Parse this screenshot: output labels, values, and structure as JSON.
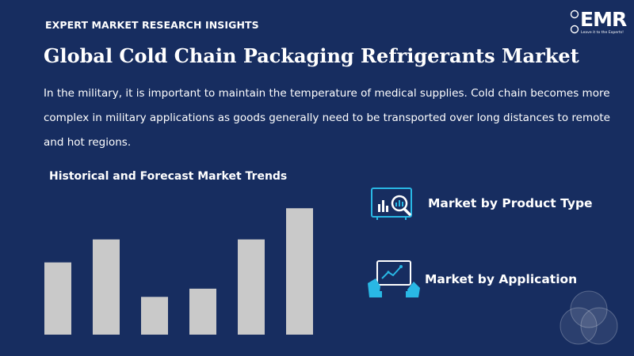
{
  "header": {
    "kicker": "EXPERT MARKET RESEARCH INSIGHTS",
    "title": "Global Cold Chain Packaging Refrigerants Market",
    "description": "In the military, it is important to maintain the temperature of medical supplies. Cold chain becomes more complex in military applications as goods generally need to be transported over long distances to remote and hot regions."
  },
  "logo": {
    "text": "EMR",
    "tagline": "Leave it to the Experts!"
  },
  "chart_title": "Historical and Forecast Market Trends",
  "chart_data": {
    "type": "bar",
    "title": "Historical and Forecast Market Trends",
    "categories": [
      "",
      "",
      "",
      "",
      "",
      ""
    ],
    "values": [
      88,
      116,
      46,
      56,
      116,
      154
    ],
    "ylim": [
      0,
      160
    ],
    "grid": false,
    "bar_color": "#c9c9c9"
  },
  "items": [
    {
      "label": "Market by Product Type",
      "icon": "chart-magnifier-icon"
    },
    {
      "label": "Market by Application",
      "icon": "touch-screen-chart-icon"
    }
  ],
  "colors": {
    "background": "#172d60",
    "accent": "#29b8e5",
    "bar": "#c9c9c9"
  }
}
